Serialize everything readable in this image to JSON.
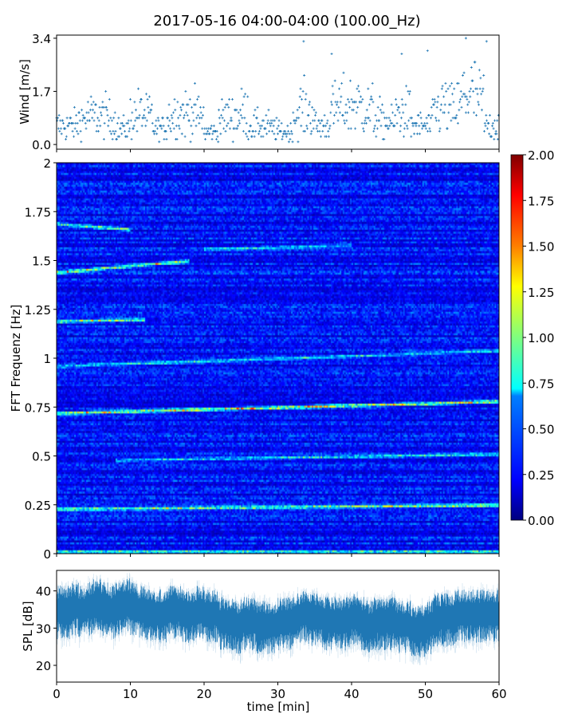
{
  "title": "2017-05-16 04:00-04:00 (100.00_Hz)",
  "colors": {
    "series": "#1f77b4",
    "axis": "#000000"
  },
  "chart_data": [
    {
      "type": "scatter",
      "name": "wind",
      "ylabel": "Wind [m/s]",
      "xlabel": "",
      "xlim": [
        0,
        60
      ],
      "ylim": [
        -0.15,
        3.5
      ],
      "yticks": [
        "0.0",
        "1.7",
        "3.4"
      ],
      "ytick_values": [
        0.0,
        1.7,
        3.4
      ],
      "marker": "+",
      "minute_mean": [
        0.6,
        0.6,
        0.6,
        0.8,
        0.9,
        0.9,
        0.9,
        0.8,
        0.5,
        0.5,
        0.9,
        1.0,
        0.9,
        0.5,
        0.5,
        0.9,
        1.0,
        1.0,
        1.0,
        0.9,
        0.4,
        0.4,
        0.8,
        0.9,
        0.9,
        1.0,
        0.6,
        0.6,
        0.6,
        0.5,
        0.4,
        0.4,
        0.9,
        1.1,
        1.0,
        0.6,
        0.6,
        1.1,
        1.2,
        1.2,
        1.3,
        1.2,
        1.1,
        0.8,
        0.7,
        0.7,
        1.0,
        1.0,
        0.6,
        0.6,
        0.6,
        1.1,
        1.2,
        1.1,
        1.2,
        1.6,
        1.6,
        1.4,
        0.6,
        0.6
      ],
      "peaks": [
        {
          "x": 33.5,
          "y": 3.3
        },
        {
          "x": 55.5,
          "y": 3.4
        },
        {
          "x": 58.3,
          "y": 3.3
        },
        {
          "x": 50.3,
          "y": 3.0
        },
        {
          "x": 46.8,
          "y": 2.9
        },
        {
          "x": 37.3,
          "y": 2.9
        }
      ]
    },
    {
      "type": "heatmap",
      "name": "spectrogram",
      "ylabel": "FFT Frequenz [Hz]",
      "xlim": [
        0,
        60
      ],
      "ylim": [
        0,
        2
      ],
      "yticks": [
        "0",
        "0.25",
        "0.5",
        "0.75",
        "1",
        "1.25",
        "1.5",
        "1.75",
        "2"
      ],
      "ytick_values": [
        0,
        0.25,
        0.5,
        0.75,
        1,
        1.25,
        1.5,
        1.75,
        2
      ],
      "colormap": "jet",
      "clim": [
        0,
        2
      ],
      "colorbar_ticks": [
        "0.00",
        "0.25",
        "0.50",
        "0.75",
        "1.00",
        "1.25",
        "1.50",
        "1.75",
        "2.00"
      ],
      "background_level": 0.25,
      "bands": [
        {
          "f_start": 0.01,
          "f_end": 0.01,
          "t_range": [
            0,
            60
          ],
          "level": 0.9
        },
        {
          "f_start": 0.23,
          "f_end": 0.25,
          "t_range": [
            0,
            60
          ],
          "level": 1.0
        },
        {
          "f_start": 0.48,
          "f_end": 0.51,
          "t_range": [
            8,
            60
          ],
          "level": 0.7
        },
        {
          "f_start": 0.72,
          "f_end": 0.78,
          "t_range": [
            0,
            60
          ],
          "level": 1.3
        },
        {
          "f_start": 0.96,
          "f_end": 1.04,
          "t_range": [
            0,
            60
          ],
          "level": 0.6
        },
        {
          "f_start": 1.19,
          "f_end": 1.2,
          "t_range": [
            0,
            12
          ],
          "level": 1.0
        },
        {
          "f_start": 1.44,
          "f_end": 1.5,
          "t_range": [
            0,
            18
          ],
          "level": 1.0
        },
        {
          "f_start": 1.69,
          "f_end": 1.66,
          "t_range": [
            0,
            10
          ],
          "level": 0.9
        },
        {
          "f_start": 1.56,
          "f_end": 1.58,
          "t_range": [
            20,
            40
          ],
          "level": 0.6
        }
      ]
    },
    {
      "type": "area",
      "name": "spl",
      "ylabel": "SPL [dB]",
      "xlabel": "time [min]",
      "xlim": [
        0,
        60
      ],
      "ylim": [
        15.5,
        45.5
      ],
      "yticks": [
        "20",
        "30",
        "40"
      ],
      "ytick_values": [
        20,
        30,
        40
      ],
      "xticks": [
        "0",
        "10",
        "20",
        "30",
        "40",
        "50",
        "60"
      ],
      "xtick_values": [
        0,
        10,
        20,
        30,
        40,
        50,
        60
      ],
      "minute_mean": [
        35,
        35,
        36,
        35,
        36,
        37,
        36,
        35,
        36,
        37,
        36,
        35,
        34,
        34,
        34,
        35,
        35,
        34,
        34,
        35,
        34,
        34,
        32,
        32,
        31,
        32,
        32,
        31,
        31,
        31,
        32,
        32,
        33,
        34,
        33,
        33,
        32,
        32,
        32,
        32,
        33,
        32,
        31,
        32,
        32,
        32,
        31,
        31,
        30,
        30,
        31,
        33,
        33,
        33,
        34,
        34,
        34,
        34,
        34,
        34
      ],
      "spread_db": 4
    }
  ]
}
